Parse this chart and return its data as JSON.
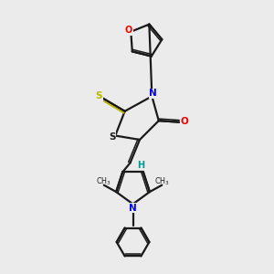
{
  "bg_color": "#ebebeb",
  "bond_color": "#1a1a1a",
  "atom_colors": {
    "N": "#0000ee",
    "O": "#ee0000",
    "S_yellow": "#b8b800",
    "S_ring": "#1a1a1a",
    "H": "#00999a",
    "C": "#1a1a1a"
  },
  "figsize": [
    3.0,
    3.0
  ],
  "dpi": 100
}
